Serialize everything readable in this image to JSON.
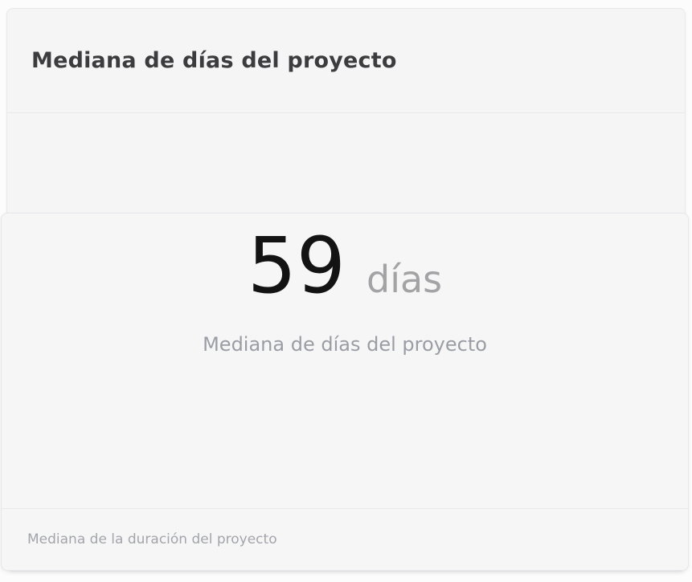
{
  "widget": {
    "title": "Mediana de días del proyecto",
    "metric": {
      "value": "59",
      "unit": "días",
      "caption": "Mediana de días del proyecto"
    },
    "footer": {
      "description": "Mediana de la duración del proyecto"
    }
  },
  "colors": {
    "page_background": "#fcfcfc",
    "card_background": "#f5f5f6",
    "border": "#e9e9eb",
    "title_text": "#3c3c3e",
    "value_text": "#131313",
    "unit_text": "#a3a3a5",
    "caption_text": "#9a9da4",
    "footer_text": "#a3a5ab"
  }
}
